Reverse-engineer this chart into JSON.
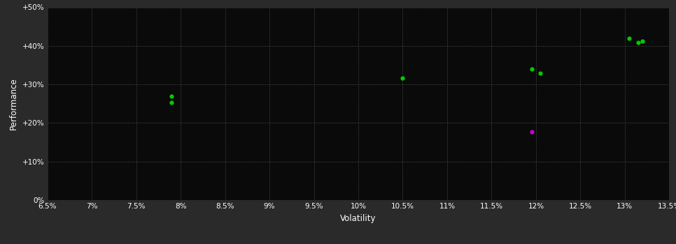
{
  "background_color": "#2a2a2a",
  "plot_bg_color": "#0a0a0a",
  "grid_color": "#404040",
  "text_color": "#ffffff",
  "xlabel": "Volatility",
  "ylabel": "Performance",
  "x_ticks": [
    0.065,
    0.07,
    0.075,
    0.08,
    0.085,
    0.09,
    0.095,
    0.1,
    0.105,
    0.11,
    0.115,
    0.12,
    0.125,
    0.13,
    0.135
  ],
  "y_ticks": [
    0.0,
    0.1,
    0.2,
    0.3,
    0.4,
    0.5
  ],
  "y_tick_labels": [
    "0%",
    "+10%",
    "+20%",
    "+30%",
    "+40%",
    "+50%"
  ],
  "x_tick_labels": [
    "6.5%",
    "7%",
    "7.5%",
    "8%",
    "8.5%",
    "9%",
    "9.5%",
    "10%",
    "10.5%",
    "11%",
    "11.5%",
    "12%",
    "12.5%",
    "13%",
    "13.5%"
  ],
  "xlim": [
    0.065,
    0.135
  ],
  "ylim": [
    0.0,
    0.5
  ],
  "points_green": [
    [
      0.079,
      0.27
    ],
    [
      0.079,
      0.254
    ],
    [
      0.105,
      0.316
    ],
    [
      0.1195,
      0.34
    ],
    [
      0.1205,
      0.33
    ],
    [
      0.1305,
      0.42
    ],
    [
      0.1315,
      0.408
    ],
    [
      0.132,
      0.413
    ]
  ],
  "points_magenta": [
    [
      0.1195,
      0.178
    ]
  ],
  "green_color": "#00cc00",
  "magenta_color": "#cc00cc",
  "marker_size": 5
}
